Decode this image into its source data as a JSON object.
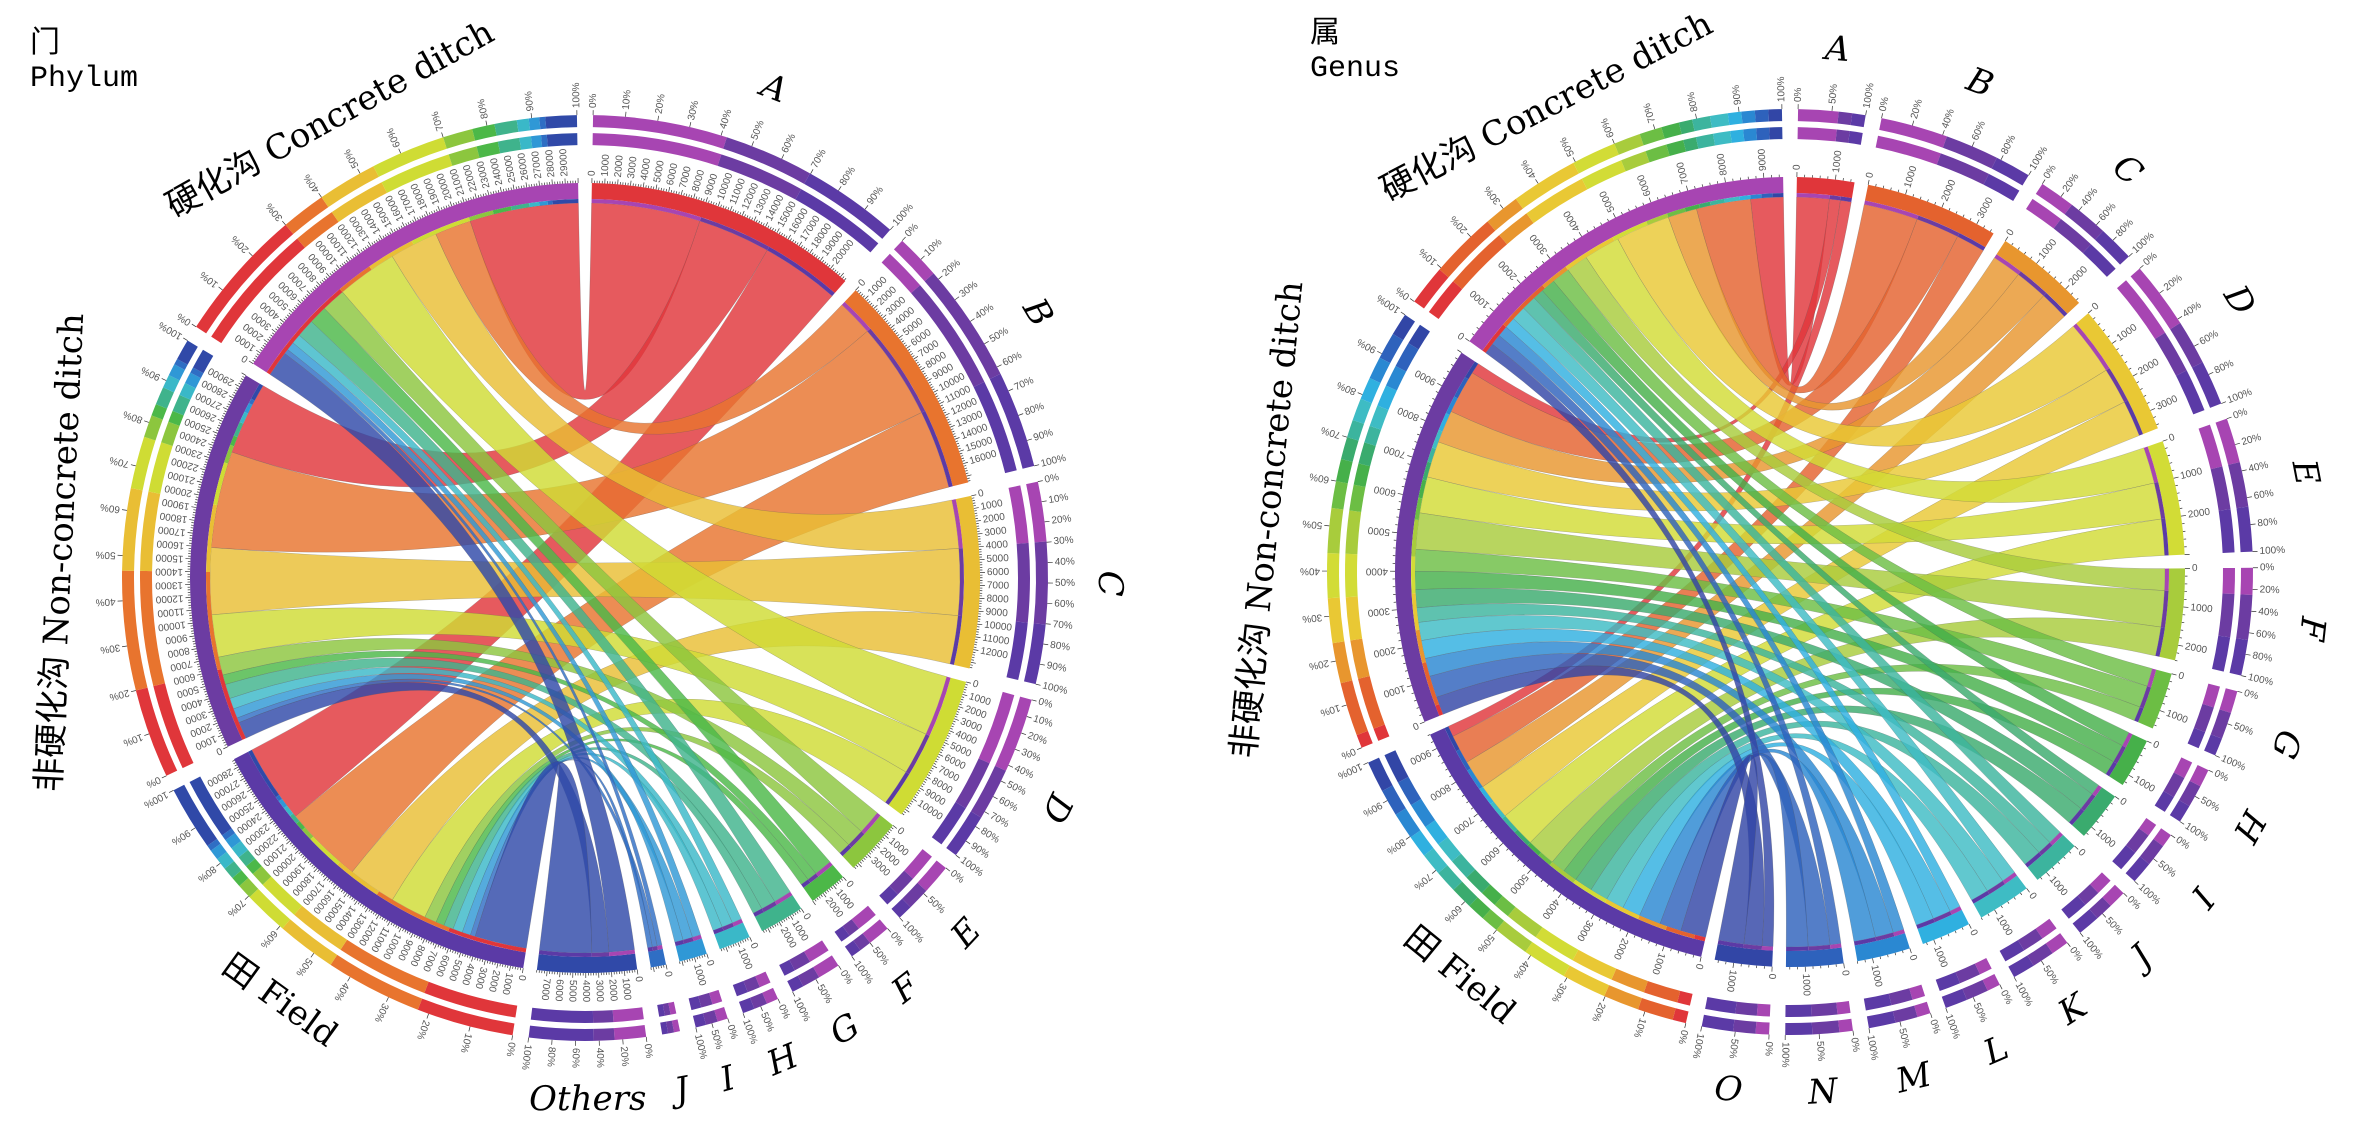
{
  "chart_data": [
    {
      "type": "chord",
      "title_cn": "门",
      "title_en": "Phylum",
      "taxa": [
        {
          "name": "A",
          "value": 21500,
          "color": "#e0363a"
        },
        {
          "name": "B",
          "value": 17500,
          "color": "#e8742e"
        },
        {
          "name": "C",
          "value": 13500,
          "color": "#e9be34"
        },
        {
          "name": "D",
          "value": 11500,
          "color": "#cfdc34"
        },
        {
          "name": "E",
          "value": 4500,
          "color": "#8cc63e"
        },
        {
          "name": "F",
          "value": 3000,
          "color": "#4cb848"
        },
        {
          "name": "G",
          "value": 3500,
          "color": "#3fb38c"
        },
        {
          "name": "H",
          "value": 2500,
          "color": "#3ab8c8"
        },
        {
          "name": "I",
          "value": 2200,
          "color": "#2f98d6"
        },
        {
          "name": "J",
          "value": 1200,
          "color": "#2f6ec4"
        },
        {
          "name": "Others",
          "value": 7800,
          "color": "#3049a8"
        }
      ],
      "groups": [
        {
          "name": "田 Field",
          "value": 28700,
          "color": "#5b3aa6"
        },
        {
          "name": "非硬化沟 Non-concrete ditch",
          "value": 30000,
          "color": "#6c3ca2"
        },
        {
          "name": "硬化沟 Concrete ditch",
          "value": 30000,
          "color": "#a745b2"
        }
      ],
      "flows_columns": [
        "Field",
        "Non-concrete ditch",
        "Concrete ditch"
      ],
      "flows": [
        [
          6500,
          6000,
          9000
        ],
        [
          6500,
          8000,
          3000
        ],
        [
          4000,
          5500,
          4000
        ],
        [
          3000,
          3500,
          5000
        ],
        [
          1000,
          1500,
          2000
        ],
        [
          700,
          800,
          1500
        ],
        [
          800,
          1200,
          1500
        ],
        [
          800,
          900,
          800
        ],
        [
          700,
          800,
          700
        ],
        [
          400,
          400,
          400
        ],
        [
          4300,
          1400,
          2100
        ]
      ],
      "tick_step": 1000
    },
    {
      "type": "chord",
      "title_cn": "属",
      "title_en": "Genus",
      "taxa": [
        {
          "name": "A",
          "value": 1500,
          "color": "#e0363a"
        },
        {
          "name": "B",
          "value": 3500,
          "color": "#e4622e"
        },
        {
          "name": "C",
          "value": 2500,
          "color": "#e8962e"
        },
        {
          "name": "D",
          "value": 3500,
          "color": "#e9c834"
        },
        {
          "name": "E",
          "value": 3000,
          "color": "#d2dc36"
        },
        {
          "name": "F",
          "value": 2400,
          "color": "#a8cc3c"
        },
        {
          "name": "G",
          "value": 1500,
          "color": "#6cbe44"
        },
        {
          "name": "H",
          "value": 1300,
          "color": "#46b04a"
        },
        {
          "name": "I",
          "value": 1300,
          "color": "#3aab6e"
        },
        {
          "name": "J",
          "value": 1300,
          "color": "#3cb49e"
        },
        {
          "name": "K",
          "value": 1400,
          "color": "#3ebcc4"
        },
        {
          "name": "L",
          "value": 1300,
          "color": "#2fb0e0"
        },
        {
          "name": "M",
          "value": 1400,
          "color": "#2a88d2"
        },
        {
          "name": "N",
          "value": 1500,
          "color": "#2e62bc"
        },
        {
          "name": "O",
          "value": 1500,
          "color": "#3246a6"
        }
      ],
      "groups": [
        {
          "name": "田 Field",
          "value": 9400,
          "color": "#5b3aa6"
        },
        {
          "name": "非硬化沟 Non-concrete ditch",
          "value": 10000,
          "color": "#6c3ca2"
        },
        {
          "name": "硬化沟 Concrete ditch",
          "value": 9500,
          "color": "#a745b2"
        }
      ],
      "flows_columns": [
        "Field",
        "Non-concrete ditch",
        "Concrete ditch"
      ],
      "flows": [
        [
          300,
          300,
          900
        ],
        [
          800,
          1200,
          1500
        ],
        [
          800,
          900,
          800
        ],
        [
          1000,
          1000,
          1500
        ],
        [
          1000,
          1000,
          1000
        ],
        [
          800,
          1000,
          600
        ],
        [
          400,
          600,
          500
        ],
        [
          400,
          500,
          400
        ],
        [
          500,
          500,
          300
        ],
        [
          500,
          400,
          400
        ],
        [
          500,
          500,
          400
        ],
        [
          500,
          500,
          300
        ],
        [
          600,
          500,
          300
        ],
        [
          600,
          600,
          300
        ],
        [
          700,
          500,
          300
        ]
      ],
      "tick_step": 1000
    }
  ]
}
